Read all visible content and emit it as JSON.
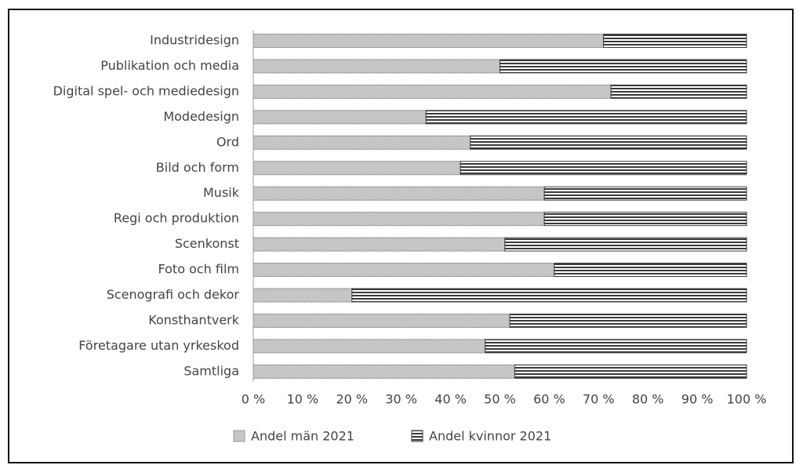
{
  "chart_data": {
    "type": "stacked-bar-horizontal",
    "categories": [
      "Industridesign",
      "Publikation och media",
      "Digital spel- och mediedesign",
      "Modedesign",
      "Ord",
      "Bild och form",
      "Musik",
      "Regi och produktion",
      "Scenkonst",
      "Foto och film",
      "Scenografi och dekor",
      "Konsthantverk",
      "Företagare utan yrkeskod",
      "Samtliga"
    ],
    "series": [
      {
        "name": "Andel män 2021",
        "color": "#c8c8c8",
        "values": [
          71,
          50,
          72.5,
          35,
          44,
          42,
          59,
          59,
          51,
          61,
          20,
          52,
          47,
          53
        ]
      },
      {
        "name": "Andel kvinnor 2021",
        "color": "#3a3a3a",
        "values": [
          29,
          50,
          27.5,
          65,
          56,
          58,
          41,
          41,
          49,
          39,
          80,
          48,
          53,
          47
        ]
      }
    ],
    "xlim": [
      0,
      100
    ],
    "xticks": [
      {
        "value": 0,
        "label": "0 %"
      },
      {
        "value": 10,
        "label": "10 %"
      },
      {
        "value": 20,
        "label": "20 %"
      },
      {
        "value": 30,
        "label": "30 %"
      },
      {
        "value": 40,
        "label": "40 %"
      },
      {
        "value": 50,
        "label": "50 %"
      },
      {
        "value": 60,
        "label": "60 %"
      },
      {
        "value": 70,
        "label": "70 %"
      },
      {
        "value": 80,
        "label": "80 %"
      },
      {
        "value": 90,
        "label": "90 %"
      },
      {
        "value": 100,
        "label": "100 %"
      }
    ],
    "grid": false,
    "legend": "bottom"
  }
}
